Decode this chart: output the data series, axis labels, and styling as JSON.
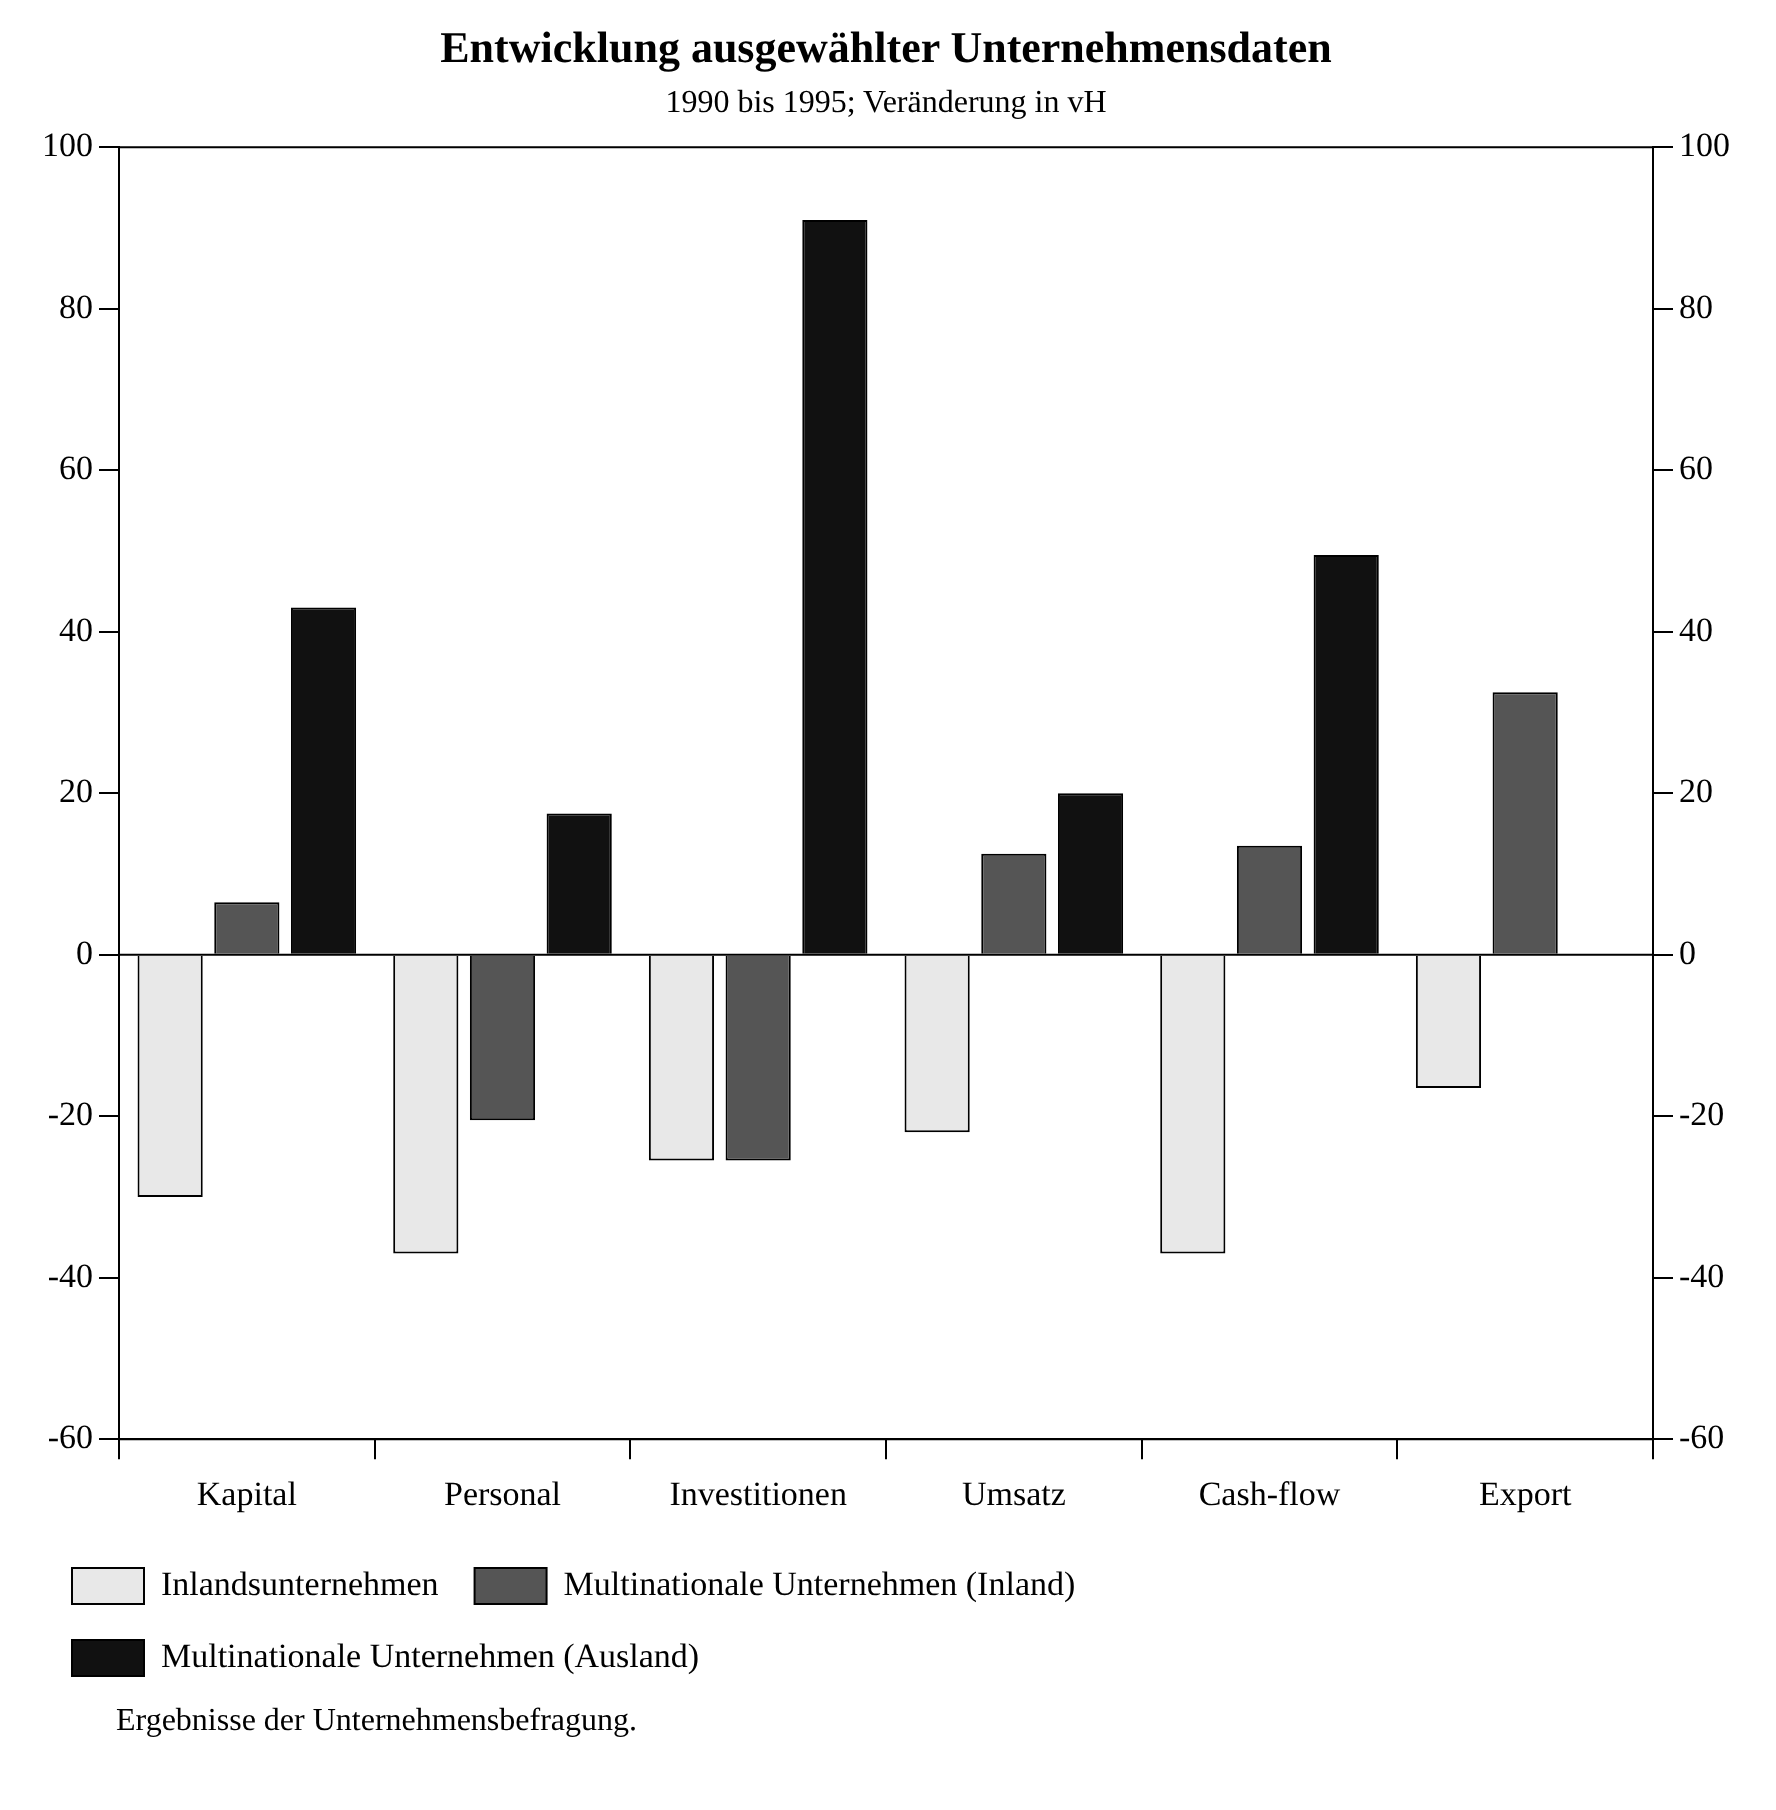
{
  "chart_data": {
    "type": "bar",
    "title": "Entwicklung ausgewählter Unternehmensdaten",
    "subtitle": "1990 bis 1995; Veränderung in vH",
    "categories": [
      "Kapital",
      "Personal",
      "Investitionen",
      "Umsatz",
      "Cash-flow",
      "Export"
    ],
    "series": [
      {
        "name": "Inlandsunternehmen",
        "color": "#e8e8e8",
        "values": [
          -30,
          -37,
          -25.5,
          -22,
          -37,
          -16.5
        ]
      },
      {
        "name": "Multinationale Unternehmen (Inland)",
        "color": "#555555",
        "values": [
          6.5,
          -20.5,
          -25.5,
          12.5,
          13.5,
          32.5
        ]
      },
      {
        "name": "Multinationale Unternehmen (Ausland)",
        "color": "#111111",
        "values": [
          43,
          17.5,
          91,
          20,
          49.5,
          null
        ]
      }
    ],
    "ylim": [
      -60,
      100
    ],
    "yticks": [
      -60,
      -40,
      -20,
      0,
      20,
      40,
      60,
      80,
      100
    ],
    "y2lim": [
      -60,
      100
    ],
    "y2ticks": [
      -60,
      -40,
      -20,
      0,
      20,
      40,
      60,
      80,
      100
    ],
    "grid": false,
    "legend": "bottom",
    "ref_lines": [
      {
        "axis": "y",
        "value": 0,
        "color": "#000000"
      }
    ],
    "annotations": [
      "Ergebnisse der Unternehmensbefragung."
    ]
  }
}
